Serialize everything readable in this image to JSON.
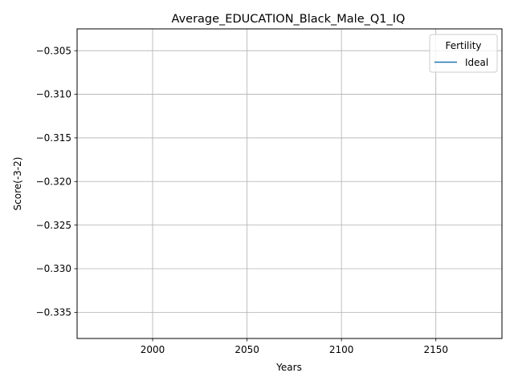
{
  "chart_data": {
    "type": "line",
    "title": "Average_EDUCATION_Black_Male_Q1_IQ",
    "xlabel": "Years",
    "ylabel": "Score(-3-2)",
    "xlim": [
      1960,
      2185
    ],
    "ylim": [
      -0.338,
      -0.3025
    ],
    "xticks": [
      2000,
      2050,
      2100,
      2150
    ],
    "yticks": [
      -0.305,
      -0.31,
      -0.315,
      -0.32,
      -0.325,
      -0.33,
      -0.335
    ],
    "ytick_labels": [
      "−0.305",
      "−0.310",
      "−0.315",
      "−0.320",
      "−0.325",
      "−0.330",
      "−0.335"
    ],
    "grid": true,
    "legend": {
      "title": "Fertility",
      "placement": "top-right"
    },
    "series": [
      {
        "name": "Ideal",
        "color": "#1f77b4",
        "x": [],
        "y": []
      }
    ]
  }
}
